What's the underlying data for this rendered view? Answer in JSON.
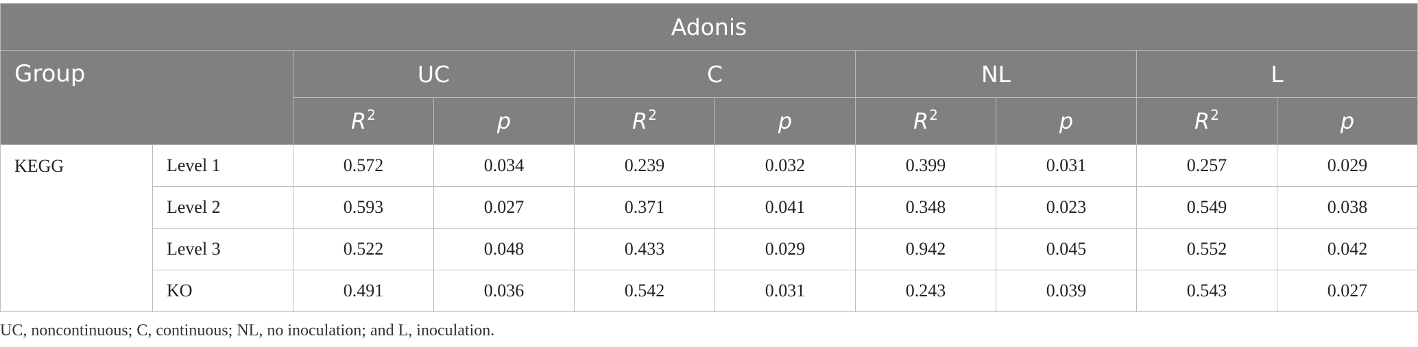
{
  "table": {
    "title": "Adonis",
    "group_header": "Group",
    "columns": [
      "UC",
      "C",
      "NL",
      "L"
    ],
    "sub_r2": "R",
    "sub_r2_sup": "2",
    "sub_p": "p",
    "group": "KEGG",
    "rows": [
      {
        "level": "Level 1",
        "values": [
          "0.572",
          "0.034",
          "0.239",
          "0.032",
          "0.399",
          "0.031",
          "0.257",
          "0.029"
        ]
      },
      {
        "level": "Level 2",
        "values": [
          "0.593",
          "0.027",
          "0.371",
          "0.041",
          "0.348",
          "0.023",
          "0.549",
          "0.038"
        ]
      },
      {
        "level": "Level 3",
        "values": [
          "0.522",
          "0.048",
          "0.433",
          "0.029",
          "0.942",
          "0.045",
          "0.552",
          "0.042"
        ]
      },
      {
        "level": "KO",
        "values": [
          "0.491",
          "0.036",
          "0.542",
          "0.031",
          "0.243",
          "0.039",
          "0.543",
          "0.027"
        ]
      }
    ]
  },
  "footnote": "UC, noncontinuous; C, continuous; NL, no inoculation; and L, inoculation."
}
